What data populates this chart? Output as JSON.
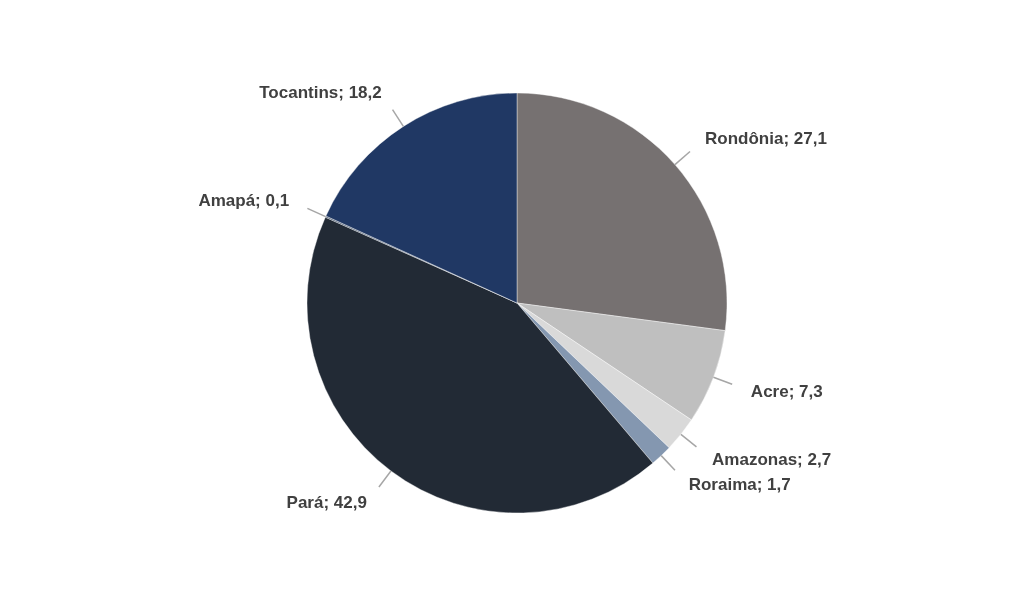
{
  "chart_data": {
    "type": "pie",
    "categories": [
      "Rondônia",
      "Acre",
      "Amazonas",
      "Roraima",
      "Pará",
      "Amapá",
      "Tocantins"
    ],
    "values": [
      27.1,
      7.3,
      2.7,
      1.7,
      42.9,
      0.1,
      18.2
    ],
    "value_labels": [
      "27,1",
      "7,3",
      "2,7",
      "1,7",
      "42,9",
      "0,1",
      "18,2"
    ],
    "colors": [
      "#767171",
      "#bfbfbf",
      "#d9d9d9",
      "#8497b0",
      "#222a35",
      "#44546a",
      "#203864"
    ],
    "legend": false
  }
}
